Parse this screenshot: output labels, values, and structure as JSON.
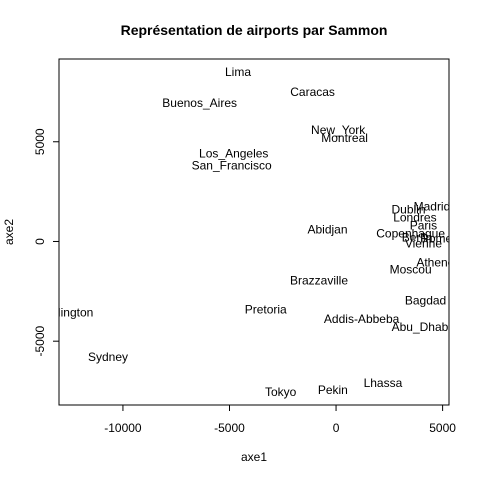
{
  "chart_data": {
    "type": "scatter",
    "title": "Représentation de airports par Sammon",
    "xlabel": "axe1",
    "ylabel": "axe2",
    "xlim": [
      -13000,
      5300
    ],
    "ylim": [
      -8200,
      9150
    ],
    "xticks": [
      -10000,
      -5000,
      0,
      5000
    ],
    "xtick_labels": [
      "-10000",
      "-5000",
      "0",
      "5000"
    ],
    "yticks": [
      -5000,
      0,
      5000
    ],
    "ytick_labels": [
      "-5000",
      "0",
      "5000"
    ],
    "grid": false,
    "points": [
      {
        "label": "Lima",
        "x": -4600,
        "y": 8500
      },
      {
        "label": "Caracas",
        "x": -1100,
        "y": 7500
      },
      {
        "label": "Buenos_Aires",
        "x": -6400,
        "y": 6950
      },
      {
        "label": "New_York",
        "x": 100,
        "y": 5600
      },
      {
        "label": "Montreal",
        "x": 400,
        "y": 5200
      },
      {
        "label": "Los_Angeles",
        "x": -4800,
        "y": 4400
      },
      {
        "label": "San_Francisco",
        "x": -4900,
        "y": 3800
      },
      {
        "label": "Madrid",
        "x": 4500,
        "y": 1750
      },
      {
        "label": "Dublin",
        "x": 3400,
        "y": 1600
      },
      {
        "label": "Londres",
        "x": 3700,
        "y": 1200
      },
      {
        "label": "Paris",
        "x": 4100,
        "y": 800
      },
      {
        "label": "Abidjan",
        "x": -400,
        "y": 600
      },
      {
        "label": "Copenhague",
        "x": 3500,
        "y": 400
      },
      {
        "label": "Berlin",
        "x": 3800,
        "y": 200
      },
      {
        "label": "Rome",
        "x": 4700,
        "y": 150
      },
      {
        "label": "Vienne",
        "x": 4100,
        "y": -100
      },
      {
        "label": "Athenes",
        "x": 4800,
        "y": -1050
      },
      {
        "label": "Moscou",
        "x": 3500,
        "y": -1400
      },
      {
        "label": "Brazzaville",
        "x": -800,
        "y": -1950
      },
      {
        "label": "Bagdad",
        "x": 4200,
        "y": -2950
      },
      {
        "label": "Wellington",
        "x": -12700,
        "y": -3550
      },
      {
        "label": "Pretoria",
        "x": -3300,
        "y": -3400
      },
      {
        "label": "Addis-Abbeba",
        "x": 1200,
        "y": -3900
      },
      {
        "label": "Abu_Dhabi",
        "x": 4000,
        "y": -4300
      },
      {
        "label": "Sydney",
        "x": -10700,
        "y": -5800
      },
      {
        "label": "Lhassa",
        "x": 2200,
        "y": -7100
      },
      {
        "label": "Pekin",
        "x": -150,
        "y": -7450
      },
      {
        "label": "Tokyo",
        "x": -2600,
        "y": -7550
      }
    ]
  }
}
